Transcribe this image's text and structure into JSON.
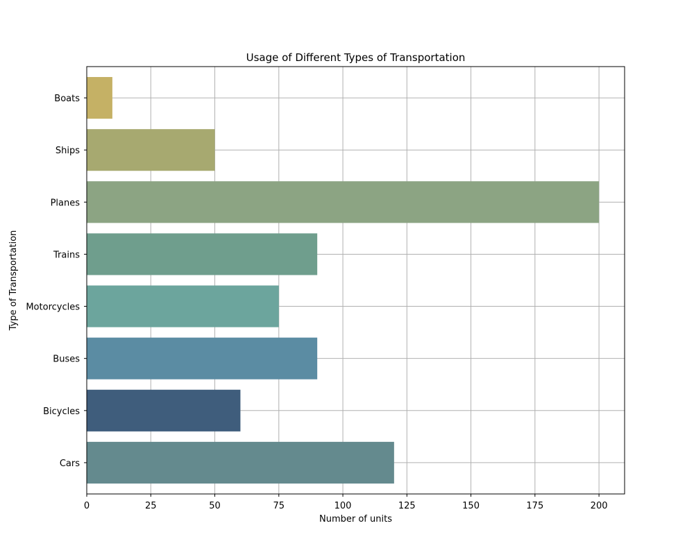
{
  "chart_data": {
    "type": "bar",
    "orientation": "horizontal",
    "title": "Usage of Different Types of Transportation",
    "xlabel": "Number of units",
    "ylabel": "Type of Transportation",
    "categories": [
      "Cars",
      "Bicycles",
      "Buses",
      "Motorcycles",
      "Trains",
      "Planes",
      "Ships",
      "Boats"
    ],
    "values": [
      120,
      60,
      90,
      75,
      90,
      200,
      50,
      10
    ],
    "colors": [
      "#648a8e",
      "#3f5d7c",
      "#5b8ca3",
      "#6ca59d",
      "#6f9e8d",
      "#8ca483",
      "#a7a970",
      "#c5b165"
    ],
    "xlim": [
      0,
      210
    ],
    "xticks": [
      0,
      25,
      50,
      75,
      100,
      125,
      150,
      175,
      200
    ],
    "grid": true
  }
}
